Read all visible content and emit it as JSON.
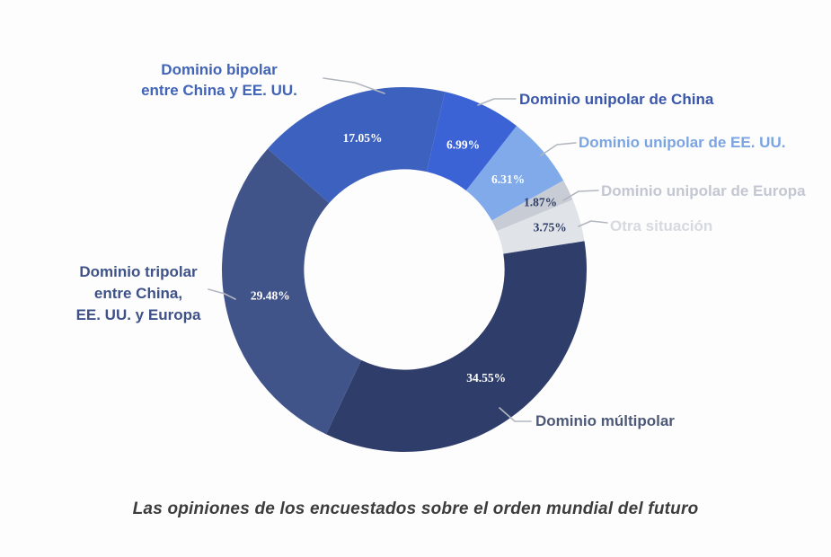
{
  "chart_data": {
    "type": "pie",
    "variant": "donut",
    "title": "Las opiniones de los encuestados sobre el orden mundial del futuro",
    "legend_position": "callouts-around-chart",
    "direction": "clockwise",
    "start_angle_deg": 81,
    "hole_ratio": 0.55,
    "total": 100.0,
    "slices": [
      {
        "label": "Dominio múltipolar",
        "value": 34.55,
        "pct_label": "34.55%",
        "color": "#2F3D6B",
        "pct_color": "#ffffff",
        "label_color": "#4d5977"
      },
      {
        "label": "Dominio tripolar\nentre China,\nEE. UU. y Europa",
        "value": 29.48,
        "pct_label": "29.48%",
        "color": "#41548A",
        "pct_color": "#ffffff",
        "label_color": "#3e5288"
      },
      {
        "label": "Dominio bipolar\nentre China y EE. UU.",
        "value": 17.05,
        "pct_label": "17.05%",
        "color": "#3D61BF",
        "pct_color": "#ffffff",
        "label_color": "#4164b6"
      },
      {
        "label": "Dominio unipolar de China",
        "value": 6.99,
        "pct_label": "6.99%",
        "color": "#3B63D6",
        "pct_color": "#ffffff",
        "label_color": "#3a57ab"
      },
      {
        "label": "Dominio unipolar de EE. UU.",
        "value": 6.31,
        "pct_label": "6.31%",
        "color": "#81AAEB",
        "pct_color": "#ffffff",
        "label_color": "#7ba5e2"
      },
      {
        "label": "Dominio unipolar de Europa",
        "value": 1.87,
        "pct_label": "1.87%",
        "color": "#C8CDD5",
        "pct_color": "#2e3c66",
        "label_color": "#c2c7d1"
      },
      {
        "label": "Otra situación",
        "value": 3.75,
        "pct_label": "3.75%",
        "color": "#E0E3E8",
        "pct_color": "#2e3c66",
        "label_color": "#d6d9df"
      }
    ]
  }
}
